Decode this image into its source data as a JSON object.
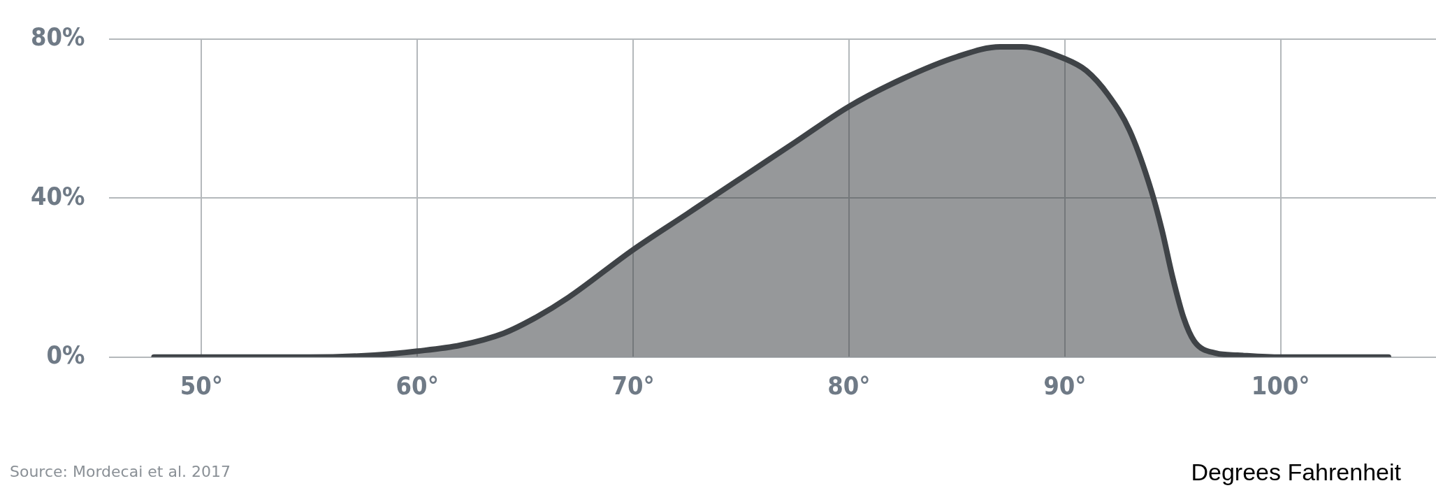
{
  "chart_data": {
    "type": "area",
    "xlabel": "Degrees Fahrenheit",
    "annotations": [
      "Source: Mordecai et al. 2017"
    ],
    "x": [
      47.8,
      50,
      52,
      55,
      58,
      60,
      62,
      64,
      65.5,
      67,
      70,
      72.5,
      75,
      77.5,
      80,
      82.5,
      85,
      87,
      88,
      90,
      91,
      92,
      93,
      94,
      94.5,
      95,
      95.5,
      96,
      97,
      98,
      100,
      102,
      105
    ],
    "series": [
      {
        "color": "#3f4347",
        "values": [
          0,
          0,
          0,
          0,
          0.5,
          1.5,
          3,
          6,
          10,
          15,
          27,
          36,
          45,
          54,
          63,
          70,
          75.5,
          78,
          78,
          75,
          72,
          66,
          57,
          42,
          32,
          20,
          10,
          4,
          1,
          0.5,
          0,
          0,
          0
        ]
      }
    ],
    "xlim": [
      45.7,
      107.2
    ],
    "ylim": [
      0,
      80
    ],
    "xticks": [
      {
        "value": 50,
        "label": "50°"
      },
      {
        "value": 60,
        "label": "60°"
      },
      {
        "value": 70,
        "label": "70°"
      },
      {
        "value": 80,
        "label": "80°"
      },
      {
        "value": 90,
        "label": "90°"
      },
      {
        "value": 100,
        "label": "100°"
      }
    ],
    "yticks": [
      {
        "value": 0,
        "label": "0%"
      },
      {
        "value": 40,
        "label": "40%"
      },
      {
        "value": 80,
        "label": "80%"
      }
    ],
    "grid": true,
    "legend": false
  }
}
